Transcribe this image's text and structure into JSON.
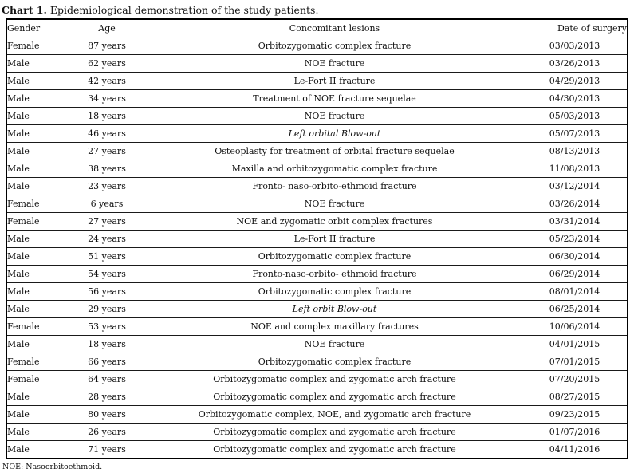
{
  "title": {
    "label": "Chart 1.",
    "text": " Epidemiological demonstration of the study patients."
  },
  "table": {
    "columns": [
      "Gender",
      "Age",
      "Concomitant lesions",
      "Date of surgery"
    ],
    "rows": [
      {
        "gender": "Female",
        "age": "87 years",
        "lesion": "Orbitozygomatic complex fracture",
        "italic": false,
        "date": "03/03/2013"
      },
      {
        "gender": "Male",
        "age": "62 years",
        "lesion": "NOE fracture",
        "italic": false,
        "date": "03/26/2013"
      },
      {
        "gender": "Male",
        "age": "42 years",
        "lesion": "Le-Fort II fracture",
        "italic": false,
        "date": "04/29/2013"
      },
      {
        "gender": "Male",
        "age": "34 years",
        "lesion": "Treatment of NOE fracture sequelae",
        "italic": false,
        "date": "04/30/2013"
      },
      {
        "gender": "Male",
        "age": "18 years",
        "lesion": "NOE fracture",
        "italic": false,
        "date": "05/03/2013"
      },
      {
        "gender": "Male",
        "age": "46 years",
        "lesion": "Left orbital Blow-out",
        "italic": true,
        "date": "05/07/2013"
      },
      {
        "gender": "Male",
        "age": "27 years",
        "lesion": "Osteoplasty for treatment of orbital fracture sequelae",
        "italic": false,
        "date": "08/13/2013"
      },
      {
        "gender": "Male",
        "age": "38 years",
        "lesion": "Maxilla and orbitozygomatic complex fracture",
        "italic": false,
        "date": "11/08/2013"
      },
      {
        "gender": "Male",
        "age": "23 years",
        "lesion": "Fronto- naso-orbito-ethmoid fracture",
        "italic": false,
        "date": "03/12/2014"
      },
      {
        "gender": "Female",
        "age": "6 years",
        "lesion": "NOE fracture",
        "italic": false,
        "date": "03/26/2014"
      },
      {
        "gender": "Female",
        "age": "27 years",
        "lesion": "NOE and zygomatic orbit complex fractures",
        "italic": false,
        "date": "03/31/2014"
      },
      {
        "gender": "Male",
        "age": "24 years",
        "lesion": "Le-Fort II fracture",
        "italic": false,
        "date": "05/23/2014"
      },
      {
        "gender": "Male",
        "age": "51 years",
        "lesion": "Orbitozygomatic complex fracture",
        "italic": false,
        "date": "06/30/2014"
      },
      {
        "gender": "Male",
        "age": "54 years",
        "lesion": "Fronto-naso-orbito- ethmoid fracture",
        "italic": false,
        "date": "06/29/2014"
      },
      {
        "gender": "Male",
        "age": "56 years",
        "lesion": "Orbitozygomatic complex fracture",
        "italic": false,
        "date": "08/01/2014"
      },
      {
        "gender": "Male",
        "age": "29 years",
        "lesion": "Left orbit Blow-out",
        "italic": true,
        "date": "06/25/2014"
      },
      {
        "gender": "Female",
        "age": "53 years",
        "lesion": "NOE and complex maxillary fractures",
        "italic": false,
        "date": "10/06/2014"
      },
      {
        "gender": "Male",
        "age": "18 years",
        "lesion": "NOE fracture",
        "italic": false,
        "date": "04/01/2015"
      },
      {
        "gender": "Female",
        "age": "66 years",
        "lesion": "Orbitozygomatic complex fracture",
        "italic": false,
        "date": "07/01/2015"
      },
      {
        "gender": "Female",
        "age": "64 years",
        "lesion": "Orbitozygomatic complex and zygomatic arch fracture",
        "italic": false,
        "date": "07/20/2015"
      },
      {
        "gender": "Male",
        "age": "28 years",
        "lesion": "Orbitozygomatic complex and zygomatic arch fracture",
        "italic": false,
        "date": "08/27/2015"
      },
      {
        "gender": "Male",
        "age": "80 years",
        "lesion": "Orbitozygomatic complex, NOE, and zygomatic arch fracture",
        "italic": false,
        "date": "09/23/2015"
      },
      {
        "gender": "Male",
        "age": "26 years",
        "lesion": "Orbitozygomatic complex and zygomatic arch fracture",
        "italic": false,
        "date": "01/07/2016"
      },
      {
        "gender": "Male",
        "age": "71 years",
        "lesion": "Orbitozygomatic complex and zygomatic arch fracture",
        "italic": false,
        "date": "04/11/2016"
      }
    ]
  },
  "footnote": "NOE: Nasoorbitoethmoid."
}
